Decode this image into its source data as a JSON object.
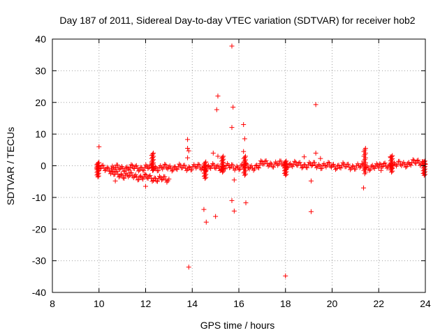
{
  "chart_data": {
    "type": "scatter",
    "title": "Day 187 of 2011, Sidereal Day-to-day VTEC variation (SDTVAR) for receiver hob2",
    "xlabel": "GPS time / hours",
    "ylabel": "SDTVAR / TECUs",
    "xlim": [
      8,
      24
    ],
    "ylim": [
      -40,
      40
    ],
    "xticks": [
      8,
      10,
      12,
      14,
      16,
      18,
      20,
      22,
      24
    ],
    "yticks": [
      -40,
      -30,
      -20,
      -10,
      0,
      10,
      20,
      30,
      40
    ],
    "grid": true,
    "marker": "+",
    "series": [
      {
        "name": "SDTVAR",
        "color": "#ff0000",
        "outliers": [
          [
            10.0,
            6.0
          ],
          [
            10.0,
            1.0
          ],
          [
            10.7,
            -4.8
          ],
          [
            12.0,
            -6.5
          ],
          [
            13.8,
            8.3
          ],
          [
            13.8,
            5.5
          ],
          [
            13.85,
            4.7
          ],
          [
            13.8,
            2.5
          ],
          [
            13.85,
            -32.0
          ],
          [
            14.5,
            -13.8
          ],
          [
            14.6,
            -17.8
          ],
          [
            14.9,
            4.0
          ],
          [
            15.0,
            -16.0
          ],
          [
            15.1,
            22.0
          ],
          [
            15.05,
            17.7
          ],
          [
            15.1,
            3.0
          ],
          [
            15.7,
            37.8
          ],
          [
            15.75,
            18.5
          ],
          [
            15.7,
            12.1
          ],
          [
            15.7,
            -11.0
          ],
          [
            15.8,
            -14.3
          ],
          [
            15.8,
            -4.5
          ],
          [
            16.2,
            13.0
          ],
          [
            16.25,
            8.5
          ],
          [
            16.2,
            4.5
          ],
          [
            16.3,
            -11.7
          ],
          [
            18.0,
            -34.8
          ],
          [
            18.8,
            2.8
          ],
          [
            19.1,
            -4.8
          ],
          [
            19.1,
            -14.5
          ],
          [
            19.3,
            19.3
          ],
          [
            19.3,
            4.0
          ],
          [
            19.5,
            2.3
          ],
          [
            21.35,
            -7.0
          ],
          [
            22.1,
            -1.5
          ],
          [
            22.5,
            2.8
          ]
        ],
        "bands": [
          {
            "x": [
              9.9,
              16.9
            ],
            "y": [
              -0.8,
              -0.3
            ]
          },
          {
            "x": [
              10.5,
              13.0
            ],
            "y": [
              -2.5,
              -4.5
            ]
          },
          {
            "x": [
              16.9,
              22.0
            ],
            "y": [
              0.7,
              -0.5
            ]
          },
          {
            "x": [
              22.0,
              24.0
            ],
            "y": [
              -0.3,
              1.3
            ]
          }
        ],
        "spikes": [
          {
            "x": 9.95,
            "y": [
              -3.5,
              1.0
            ]
          },
          {
            "x": 12.3,
            "y": [
              -1.5,
              4.0
            ]
          },
          {
            "x": 14.55,
            "y": [
              -4.0,
              1.2
            ]
          },
          {
            "x": 15.3,
            "y": [
              -2.0,
              3.0
            ]
          },
          {
            "x": 16.25,
            "y": [
              -3.0,
              3.0
            ]
          },
          {
            "x": 18.0,
            "y": [
              -3.0,
              1.5
            ]
          },
          {
            "x": 21.4,
            "y": [
              -2.5,
              5.5
            ]
          },
          {
            "x": 22.55,
            "y": [
              -2.0,
              3.2
            ]
          },
          {
            "x": 23.95,
            "y": [
              -3.0,
              1.5
            ]
          }
        ]
      }
    ]
  }
}
